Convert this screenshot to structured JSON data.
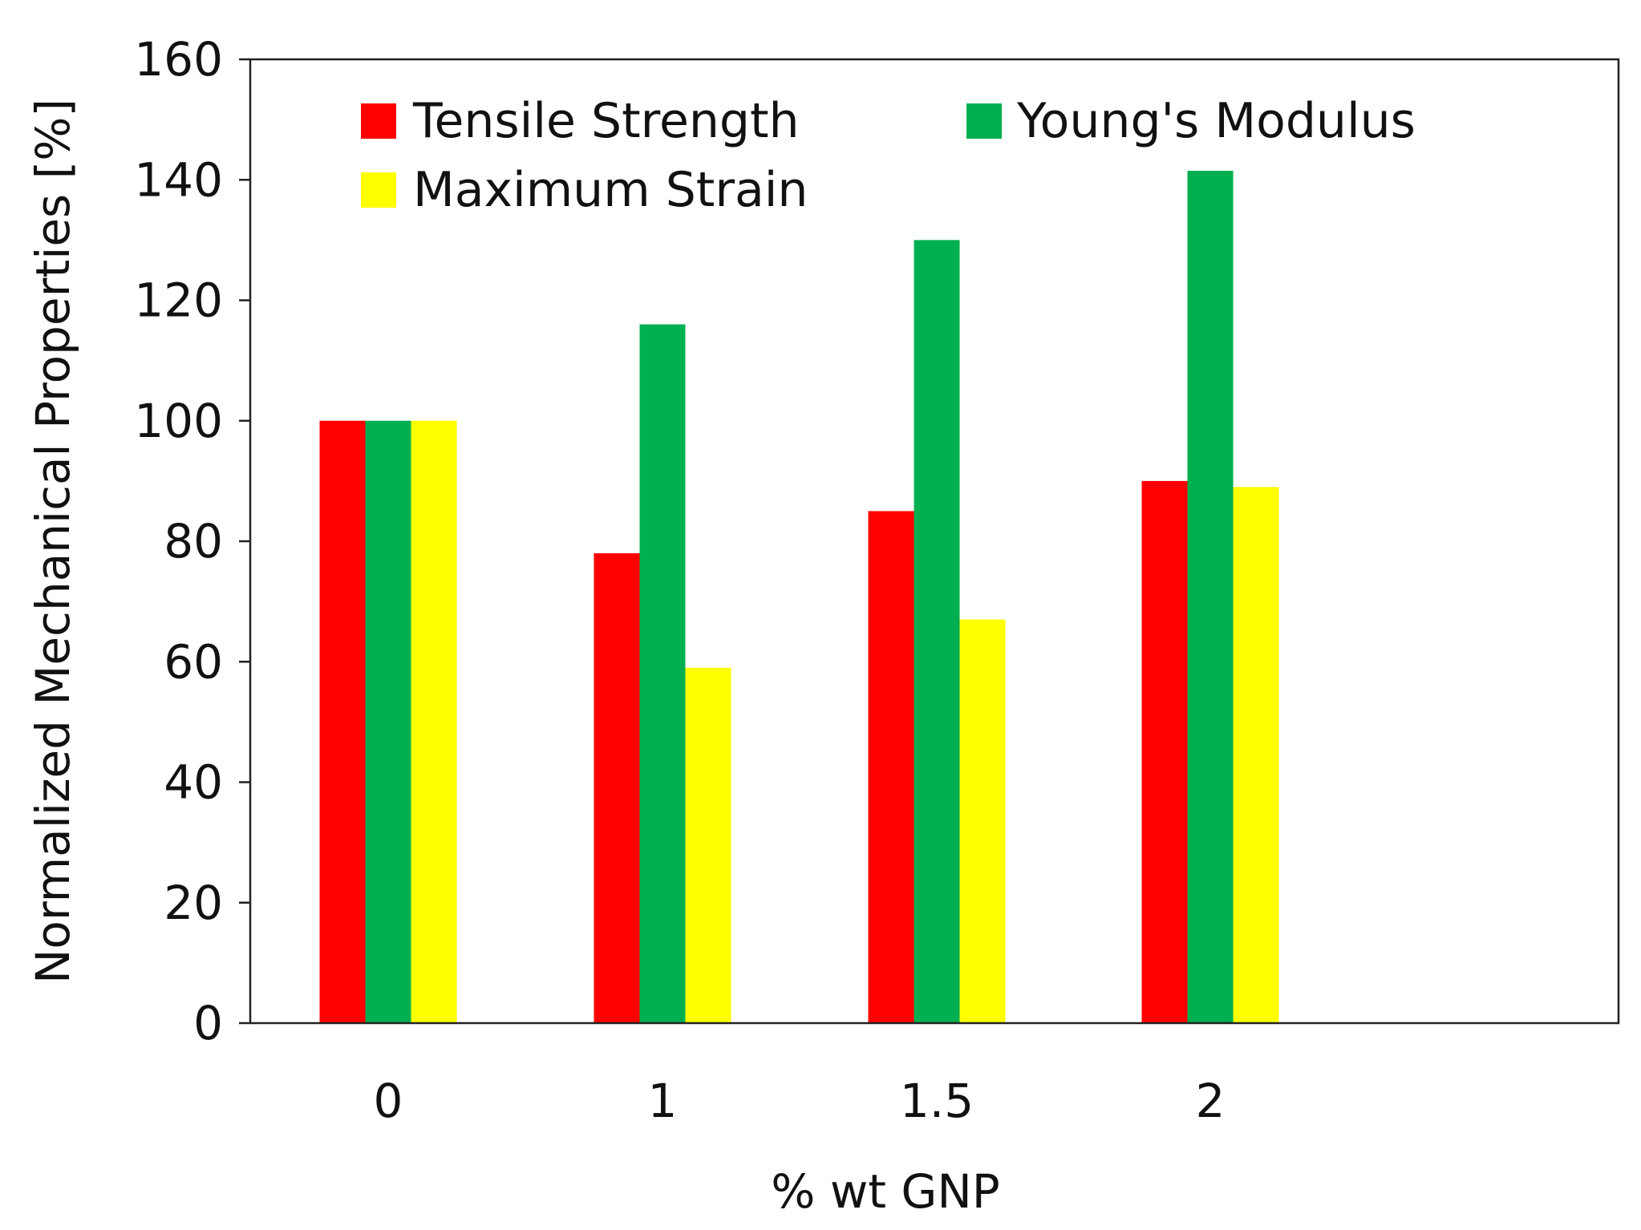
{
  "chart_data": {
    "type": "bar",
    "title": "",
    "xlabel": "% wt GNP",
    "ylabel": "Normalized Mechanical Properties [%]",
    "categories": [
      "0",
      "1",
      "1.5",
      "2"
    ],
    "ylim": [
      0,
      160
    ],
    "yticks": [
      0,
      20,
      40,
      60,
      80,
      100,
      120,
      140,
      160
    ],
    "ytick_labels": [
      "0",
      "20",
      "40",
      "60",
      "80",
      "100",
      "120",
      "140",
      "160"
    ],
    "grid": false,
    "legend_position": "top-left inside",
    "series": [
      {
        "name": "Tensile Strength",
        "color": "#ff0000",
        "values": [
          100,
          78,
          85,
          90
        ]
      },
      {
        "name": "Young's Modulus",
        "color": "#00b050",
        "values": [
          100,
          116,
          130,
          141.5
        ]
      },
      {
        "name": "Maximum Strain",
        "color": "#ffff00",
        "values": [
          100,
          59,
          67,
          89
        ]
      }
    ]
  }
}
